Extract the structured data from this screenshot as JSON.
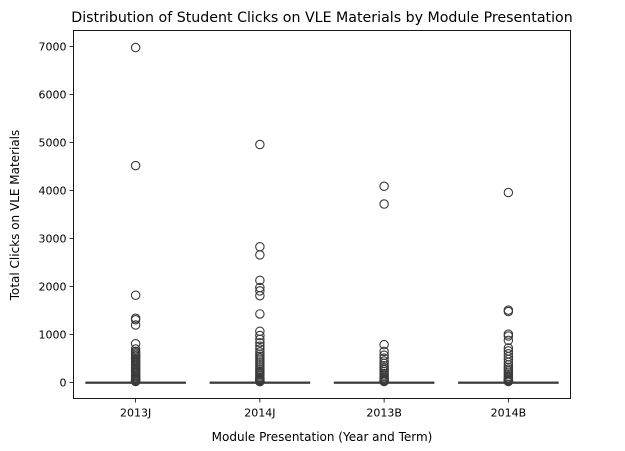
{
  "chart_data": {
    "type": "box",
    "title": "Distribution of Student Clicks on VLE Materials by Module Presentation",
    "xlabel": "Module Presentation (Year and Term)",
    "ylabel": "Total Clicks on VLE Materials",
    "categories": [
      "2013J",
      "2014J",
      "2013B",
      "2014B"
    ],
    "ylim": [
      -300,
      7300
    ],
    "yticks": [
      0,
      1000,
      2000,
      3000,
      4000,
      5000,
      6000,
      7000
    ],
    "grid": false,
    "colors": {
      "box_edge": "#3b3b3b",
      "outlier_edge": "#3b3b3b"
    },
    "boxes": [
      {
        "category": "2013J",
        "q1": 1,
        "median": 3,
        "q3": 8,
        "whisker_low": 1,
        "whisker_high": 18,
        "outliers": [
          6980,
          4520,
          1820,
          1340,
          1310,
          1200,
          810,
          700,
          650,
          620,
          590,
          560,
          530,
          500,
          470,
          440,
          410,
          380,
          350,
          320,
          290,
          260,
          230,
          200,
          175,
          150,
          125,
          100,
          80,
          60,
          45,
          35,
          28,
          22
        ]
      },
      {
        "category": "2014J",
        "q1": 1,
        "median": 3,
        "q3": 8,
        "whisker_low": 1,
        "whisker_high": 18,
        "outliers": [
          4960,
          2830,
          2660,
          2130,
          1980,
          1910,
          1810,
          1430,
          1070,
          980,
          900,
          830,
          760,
          700,
          640,
          590,
          550,
          510,
          470,
          430,
          390,
          350,
          310,
          270,
          230,
          200,
          170,
          140,
          110,
          85,
          65,
          48,
          35,
          26,
          21
        ]
      },
      {
        "category": "2013B",
        "q1": 1,
        "median": 3,
        "q3": 8,
        "whisker_low": 1,
        "whisker_high": 18,
        "outliers": [
          4090,
          3720,
          790,
          650,
          570,
          510,
          450,
          400,
          350,
          310,
          270,
          230,
          190,
          160,
          130,
          100,
          75,
          55,
          40,
          30,
          23
        ]
      },
      {
        "category": "2014B",
        "q1": 1,
        "median": 3,
        "q3": 8,
        "whisker_low": 1,
        "whisker_high": 18,
        "outliers": [
          3960,
          1510,
          1480,
          1010,
          970,
          880,
          720,
          660,
          600,
          540,
          480,
          420,
          370,
          320,
          280,
          240,
          200,
          165,
          130,
          100,
          75,
          55,
          40,
          30,
          23
        ]
      }
    ]
  }
}
